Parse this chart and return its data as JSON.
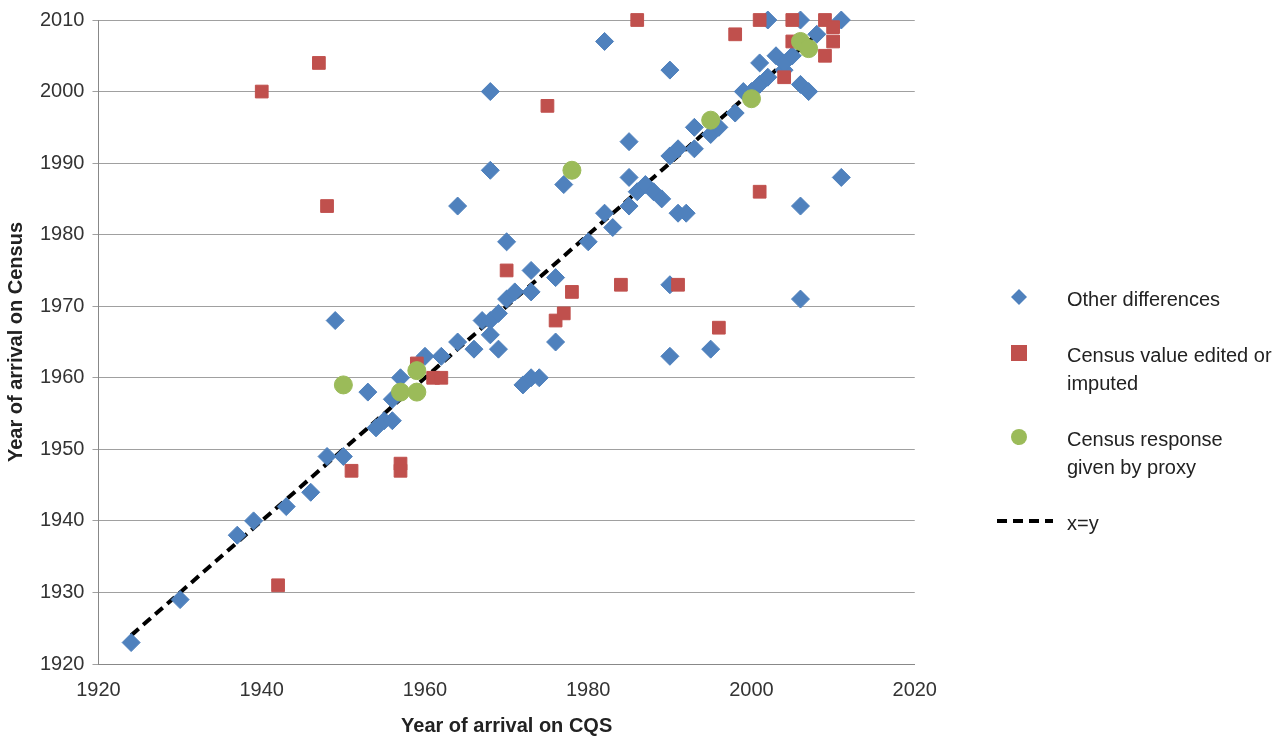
{
  "chart_data": {
    "type": "scatter",
    "xlabel": "Year of arrival on CQS",
    "ylabel": "Year of arrival on Census",
    "xlim": [
      1920,
      2020
    ],
    "xticks": [
      1920,
      1940,
      1960,
      1980,
      2000,
      2020
    ],
    "ylim": [
      1920,
      2010
    ],
    "yticks": [
      1920,
      1930,
      1940,
      1950,
      1960,
      1970,
      1980,
      1990,
      2000,
      2010
    ],
    "grid": "y",
    "legend": "right",
    "series": [
      {
        "name": "Other differences",
        "color": "#4f81bd",
        "marker": "diamond",
        "x": [
          1924,
          1930,
          1937,
          1939,
          1943,
          1946,
          1948,
          1949,
          1950,
          1953,
          1954,
          1955,
          1956,
          1956,
          1957,
          1960,
          1962,
          1964,
          1964,
          1966,
          1967,
          1968,
          1968,
          1969,
          1969,
          1970,
          1970,
          1971,
          1972,
          1973,
          1974,
          1973,
          1973,
          1976,
          1976,
          1977,
          1980,
          1982,
          1983,
          1982,
          1985,
          1985,
          1985,
          1986,
          1987,
          1988,
          1989,
          1990,
          1990,
          1990,
          1990,
          1991,
          1991,
          1992,
          1993,
          1993,
          1995,
          1995,
          1996,
          1998,
          1999,
          2000,
          2001,
          2001,
          2002,
          2003,
          2004,
          2004,
          2005,
          2006,
          2007,
          2006,
          2006,
          2011,
          2002,
          2006,
          2008,
          2011,
          1968,
          1968
        ],
        "values": [
          1923,
          1929,
          1938,
          1940,
          1942,
          1944,
          1949,
          1968,
          1949,
          1958,
          1953,
          1954,
          1954,
          1957,
          1960,
          1963,
          1963,
          1965,
          1984,
          1964,
          1968,
          1966,
          1968,
          1964,
          1969,
          1971,
          1979,
          1972,
          1959,
          1960,
          1960,
          1972,
          1975,
          1974,
          1965,
          1987,
          1979,
          1983,
          1981,
          2007,
          1984,
          1988,
          1993,
          1986,
          1987,
          1986,
          1985,
          1991,
          1973,
          1963,
          2003,
          1992,
          1983,
          1983,
          1992,
          1995,
          1994,
          1964,
          1995,
          1997,
          2000,
          2000,
          2004,
          2001,
          2002,
          2005,
          2003,
          2004,
          2005,
          2001,
          2000,
          1984,
          1971,
          1988,
          2010,
          2010,
          2008,
          2010,
          2000,
          1989
        ]
      },
      {
        "name": "Census value edited or imputed",
        "color": "#c0504d",
        "marker": "square",
        "x": [
          1940,
          1947,
          1948,
          1942,
          1951,
          1957,
          1957,
          1959,
          1961,
          1962,
          1970,
          1975,
          1976,
          1977,
          1978,
          1984,
          1986,
          1991,
          1996,
          1998,
          2001,
          2001,
          2004,
          2005,
          2005,
          2009,
          2009,
          2010,
          2010
        ],
        "values": [
          2000,
          2004,
          1984,
          1931,
          1947,
          1948,
          1947,
          1962,
          1960,
          1960,
          1975,
          1998,
          1968,
          1969,
          1972,
          1973,
          2010,
          1973,
          1967,
          2008,
          2010,
          1986,
          2002,
          2010,
          2007,
          2010,
          2005,
          2007,
          2009
        ]
      },
      {
        "name": "Census response given by proxy",
        "color": "#9bbb59",
        "marker": "circle",
        "x": [
          1950,
          1957,
          1959,
          1959,
          1978,
          1995,
          2000,
          2006,
          2007
        ],
        "values": [
          1959,
          1958,
          1961,
          1958,
          1989,
          1996,
          1999,
          2007,
          2006
        ]
      },
      {
        "name": "x=y",
        "type": "line",
        "color": "#000000",
        "marker": "none",
        "line_style": "dashed",
        "x": [
          1924,
          2008
        ],
        "values": [
          1924,
          2008
        ]
      }
    ]
  }
}
